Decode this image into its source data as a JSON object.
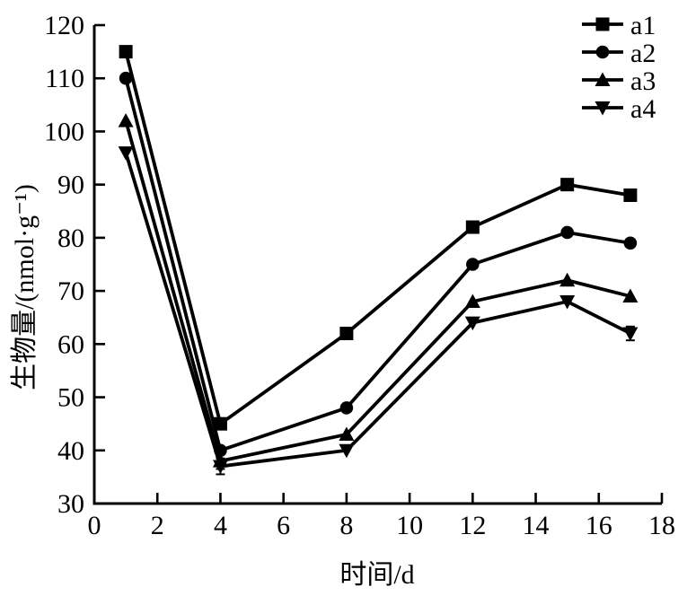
{
  "chart_data": {
    "type": "line",
    "title": "",
    "xlabel": "时间/d",
    "ylabel": "生物量/(nmol·g⁻¹)",
    "x": [
      1,
      4,
      8,
      12,
      15,
      17
    ],
    "series": [
      {
        "name": "a1",
        "marker": "square",
        "values": [
          115,
          45,
          62,
          82,
          90,
          88
        ]
      },
      {
        "name": "a2",
        "marker": "circle",
        "values": [
          110,
          40,
          48,
          75,
          81,
          79
        ]
      },
      {
        "name": "a3",
        "marker": "triangle-up",
        "values": [
          102,
          38,
          43,
          68,
          72,
          69
        ]
      },
      {
        "name": "a4",
        "marker": "triangle-down",
        "values": [
          96,
          37,
          40,
          64,
          68,
          62
        ]
      }
    ],
    "error_bars": [
      {
        "series": "a3",
        "x": 4,
        "plus_minus": 1.5
      },
      {
        "series": "a4",
        "x": 4,
        "plus_minus": 1.5
      },
      {
        "series": "a4",
        "x": 17,
        "plus_minus": 1.3
      }
    ],
    "xlim": [
      0,
      18
    ],
    "ylim": [
      30,
      120
    ],
    "xticks": [
      0,
      2,
      4,
      6,
      8,
      10,
      12,
      14,
      16,
      18
    ],
    "yticks": [
      30,
      40,
      50,
      60,
      70,
      80,
      90,
      100,
      110,
      120
    ],
    "grid": false,
    "legend_position": "top-right",
    "colors": {
      "line": "#000000",
      "text": "#000000",
      "background": "#ffffff"
    }
  }
}
